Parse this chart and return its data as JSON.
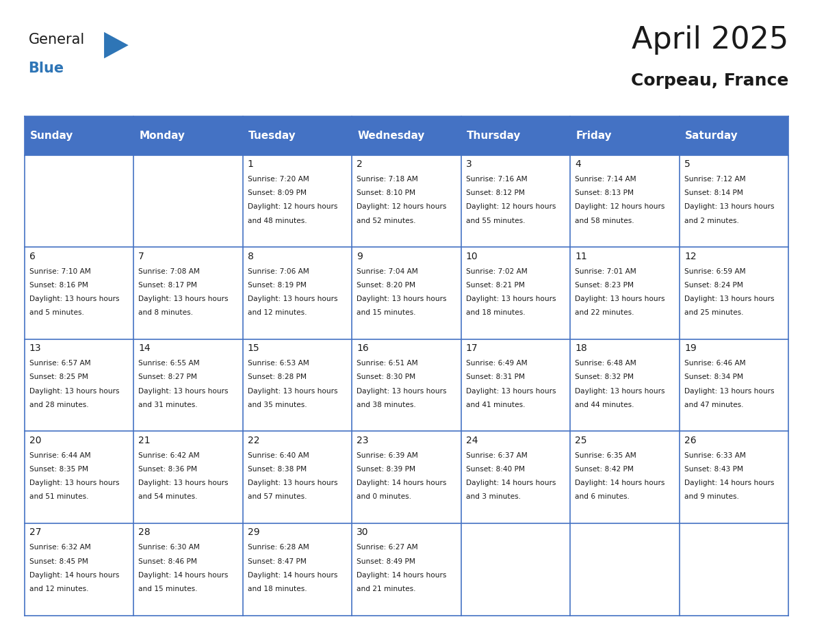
{
  "title": "April 2025",
  "subtitle": "Corpeau, France",
  "header_bg_color": "#4472C4",
  "header_text_color": "#FFFFFF",
  "cell_bg_color": "#FFFFFF",
  "border_color": "#4472C4",
  "days_of_week": [
    "Sunday",
    "Monday",
    "Tuesday",
    "Wednesday",
    "Thursday",
    "Friday",
    "Saturday"
  ],
  "weeks": [
    [
      {
        "date": "",
        "sunrise": "",
        "sunset": "",
        "daylight": ""
      },
      {
        "date": "",
        "sunrise": "",
        "sunset": "",
        "daylight": ""
      },
      {
        "date": "1",
        "sunrise": "7:20 AM",
        "sunset": "8:09 PM",
        "daylight": "12 hours and 48 minutes."
      },
      {
        "date": "2",
        "sunrise": "7:18 AM",
        "sunset": "8:10 PM",
        "daylight": "12 hours and 52 minutes."
      },
      {
        "date": "3",
        "sunrise": "7:16 AM",
        "sunset": "8:12 PM",
        "daylight": "12 hours and 55 minutes."
      },
      {
        "date": "4",
        "sunrise": "7:14 AM",
        "sunset": "8:13 PM",
        "daylight": "12 hours and 58 minutes."
      },
      {
        "date": "5",
        "sunrise": "7:12 AM",
        "sunset": "8:14 PM",
        "daylight": "13 hours and 2 minutes."
      }
    ],
    [
      {
        "date": "6",
        "sunrise": "7:10 AM",
        "sunset": "8:16 PM",
        "daylight": "13 hours and 5 minutes."
      },
      {
        "date": "7",
        "sunrise": "7:08 AM",
        "sunset": "8:17 PM",
        "daylight": "13 hours and 8 minutes."
      },
      {
        "date": "8",
        "sunrise": "7:06 AM",
        "sunset": "8:19 PM",
        "daylight": "13 hours and 12 minutes."
      },
      {
        "date": "9",
        "sunrise": "7:04 AM",
        "sunset": "8:20 PM",
        "daylight": "13 hours and 15 minutes."
      },
      {
        "date": "10",
        "sunrise": "7:02 AM",
        "sunset": "8:21 PM",
        "daylight": "13 hours and 18 minutes."
      },
      {
        "date": "11",
        "sunrise": "7:01 AM",
        "sunset": "8:23 PM",
        "daylight": "13 hours and 22 minutes."
      },
      {
        "date": "12",
        "sunrise": "6:59 AM",
        "sunset": "8:24 PM",
        "daylight": "13 hours and 25 minutes."
      }
    ],
    [
      {
        "date": "13",
        "sunrise": "6:57 AM",
        "sunset": "8:25 PM",
        "daylight": "13 hours and 28 minutes."
      },
      {
        "date": "14",
        "sunrise": "6:55 AM",
        "sunset": "8:27 PM",
        "daylight": "13 hours and 31 minutes."
      },
      {
        "date": "15",
        "sunrise": "6:53 AM",
        "sunset": "8:28 PM",
        "daylight": "13 hours and 35 minutes."
      },
      {
        "date": "16",
        "sunrise": "6:51 AM",
        "sunset": "8:30 PM",
        "daylight": "13 hours and 38 minutes."
      },
      {
        "date": "17",
        "sunrise": "6:49 AM",
        "sunset": "8:31 PM",
        "daylight": "13 hours and 41 minutes."
      },
      {
        "date": "18",
        "sunrise": "6:48 AM",
        "sunset": "8:32 PM",
        "daylight": "13 hours and 44 minutes."
      },
      {
        "date": "19",
        "sunrise": "6:46 AM",
        "sunset": "8:34 PM",
        "daylight": "13 hours and 47 minutes."
      }
    ],
    [
      {
        "date": "20",
        "sunrise": "6:44 AM",
        "sunset": "8:35 PM",
        "daylight": "13 hours and 51 minutes."
      },
      {
        "date": "21",
        "sunrise": "6:42 AM",
        "sunset": "8:36 PM",
        "daylight": "13 hours and 54 minutes."
      },
      {
        "date": "22",
        "sunrise": "6:40 AM",
        "sunset": "8:38 PM",
        "daylight": "13 hours and 57 minutes."
      },
      {
        "date": "23",
        "sunrise": "6:39 AM",
        "sunset": "8:39 PM",
        "daylight": "14 hours and 0 minutes."
      },
      {
        "date": "24",
        "sunrise": "6:37 AM",
        "sunset": "8:40 PM",
        "daylight": "14 hours and 3 minutes."
      },
      {
        "date": "25",
        "sunrise": "6:35 AM",
        "sunset": "8:42 PM",
        "daylight": "14 hours and 6 minutes."
      },
      {
        "date": "26",
        "sunrise": "6:33 AM",
        "sunset": "8:43 PM",
        "daylight": "14 hours and 9 minutes."
      }
    ],
    [
      {
        "date": "27",
        "sunrise": "6:32 AM",
        "sunset": "8:45 PM",
        "daylight": "14 hours and 12 minutes."
      },
      {
        "date": "28",
        "sunrise": "6:30 AM",
        "sunset": "8:46 PM",
        "daylight": "14 hours and 15 minutes."
      },
      {
        "date": "29",
        "sunrise": "6:28 AM",
        "sunset": "8:47 PM",
        "daylight": "14 hours and 18 minutes."
      },
      {
        "date": "30",
        "sunrise": "6:27 AM",
        "sunset": "8:49 PM",
        "daylight": "14 hours and 21 minutes."
      },
      {
        "date": "",
        "sunrise": "",
        "sunset": "",
        "daylight": ""
      },
      {
        "date": "",
        "sunrise": "",
        "sunset": "",
        "daylight": ""
      },
      {
        "date": "",
        "sunrise": "",
        "sunset": "",
        "daylight": ""
      }
    ]
  ]
}
